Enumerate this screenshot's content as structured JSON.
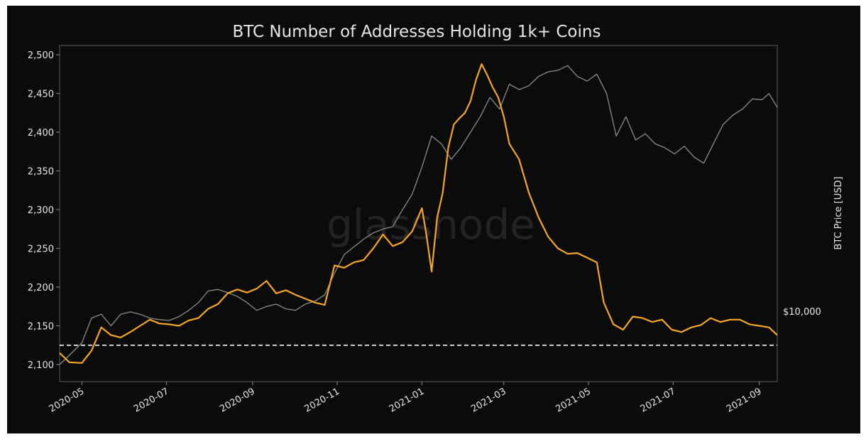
{
  "chart_data": {
    "type": "line",
    "title": "BTC Number of Addresses Holding 1k+ Coins",
    "watermark": "glassnode",
    "xlabel": "",
    "ylabel": "",
    "y2label": "BTC Price [USD]",
    "x_range": [
      "2020-04-15",
      "2021-09-14"
    ],
    "ylim": [
      2078,
      2512
    ],
    "yticks": [
      2100,
      2150,
      2200,
      2250,
      2300,
      2350,
      2400,
      2450,
      2500
    ],
    "ytick_labels": [
      "2,100",
      "2,150",
      "2,200",
      "2,250",
      "2,300",
      "2,350",
      "2,400",
      "2,450",
      "2,500"
    ],
    "xticks": [
      "2020-05-01",
      "2020-07-01",
      "2020-09-01",
      "2020-11-01",
      "2021-01-01",
      "2021-03-01",
      "2021-05-01",
      "2021-07-01",
      "2021-09-01"
    ],
    "xtick_labels": [
      "2020-05",
      "2020-07",
      "2020-09",
      "2020-11",
      "2021-01",
      "2021-03",
      "2021-05",
      "2021-07",
      "2021-09"
    ],
    "reference_line": {
      "label": "$10,000",
      "y": 2125
    },
    "grid": false,
    "colors": {
      "addresses": "#f5a623",
      "price": "#8c8c8c",
      "background": "#0b0b0b",
      "text": "#e6e6e6",
      "reference": "#ffffff"
    },
    "series": [
      {
        "key": "addresses",
        "x": [
          "2020-04-15",
          "2020-04-22",
          "2020-05-01",
          "2020-05-08",
          "2020-05-15",
          "2020-05-22",
          "2020-05-29",
          "2020-06-05",
          "2020-06-12",
          "2020-06-19",
          "2020-06-26",
          "2020-07-03",
          "2020-07-10",
          "2020-07-17",
          "2020-07-24",
          "2020-07-31",
          "2020-08-07",
          "2020-08-14",
          "2020-08-21",
          "2020-08-28",
          "2020-09-04",
          "2020-09-11",
          "2020-09-18",
          "2020-09-25",
          "2020-10-02",
          "2020-10-09",
          "2020-10-16",
          "2020-10-23",
          "2020-10-30",
          "2020-11-06",
          "2020-11-13",
          "2020-11-20",
          "2020-11-27",
          "2020-12-04",
          "2020-12-11",
          "2020-12-18",
          "2020-12-25",
          "2021-01-01",
          "2021-01-04",
          "2021-01-08",
          "2021-01-12",
          "2021-01-16",
          "2021-01-20",
          "2021-01-24",
          "2021-01-28",
          "2021-02-01",
          "2021-02-05",
          "2021-02-09",
          "2021-02-13",
          "2021-02-17",
          "2021-02-21",
          "2021-02-25",
          "2021-03-01",
          "2021-03-05",
          "2021-03-12",
          "2021-03-19",
          "2021-03-26",
          "2021-04-02",
          "2021-04-09",
          "2021-04-16",
          "2021-04-23",
          "2021-04-30",
          "2021-05-07",
          "2021-05-12",
          "2021-05-19",
          "2021-05-26",
          "2021-06-02",
          "2021-06-09",
          "2021-06-16",
          "2021-06-23",
          "2021-06-30",
          "2021-07-07",
          "2021-07-14",
          "2021-07-21",
          "2021-07-28",
          "2021-08-04",
          "2021-08-11",
          "2021-08-18",
          "2021-08-25",
          "2021-09-01",
          "2021-09-08",
          "2021-09-14"
        ],
        "values": [
          2115,
          2103,
          2102,
          2118,
          2148,
          2138,
          2135,
          2142,
          2150,
          2158,
          2153,
          2152,
          2150,
          2157,
          2160,
          2172,
          2178,
          2192,
          2197,
          2193,
          2198,
          2208,
          2192,
          2196,
          2190,
          2185,
          2180,
          2177,
          2228,
          2225,
          2232,
          2235,
          2250,
          2268,
          2253,
          2258,
          2272,
          2302,
          2270,
          2220,
          2290,
          2322,
          2380,
          2410,
          2418,
          2425,
          2440,
          2468,
          2488,
          2474,
          2458,
          2445,
          2420,
          2385,
          2365,
          2322,
          2290,
          2265,
          2250,
          2243,
          2244,
          2238,
          2232,
          2180,
          2152,
          2145,
          2162,
          2160,
          2155,
          2158,
          2145,
          2142,
          2148,
          2151,
          2160,
          2155,
          2158,
          2158,
          2152,
          2150,
          2148,
          2138
        ]
      },
      {
        "key": "price",
        "x": [
          "2020-04-15",
          "2020-04-22",
          "2020-05-01",
          "2020-05-08",
          "2020-05-15",
          "2020-05-22",
          "2020-05-29",
          "2020-06-05",
          "2020-06-12",
          "2020-06-19",
          "2020-06-26",
          "2020-07-03",
          "2020-07-10",
          "2020-07-17",
          "2020-07-24",
          "2020-07-31",
          "2020-08-07",
          "2020-08-14",
          "2020-08-21",
          "2020-08-28",
          "2020-09-04",
          "2020-09-11",
          "2020-09-18",
          "2020-09-25",
          "2020-10-02",
          "2020-10-09",
          "2020-10-16",
          "2020-10-23",
          "2020-10-30",
          "2020-11-06",
          "2020-11-13",
          "2020-11-20",
          "2020-11-27",
          "2020-12-04",
          "2020-12-11",
          "2020-12-18",
          "2020-12-25",
          "2021-01-01",
          "2021-01-08",
          "2021-01-15",
          "2021-01-22",
          "2021-01-29",
          "2021-02-05",
          "2021-02-12",
          "2021-02-19",
          "2021-02-26",
          "2021-03-05",
          "2021-03-12",
          "2021-03-19",
          "2021-03-26",
          "2021-04-02",
          "2021-04-09",
          "2021-04-16",
          "2021-04-23",
          "2021-04-30",
          "2021-05-07",
          "2021-05-14",
          "2021-05-21",
          "2021-05-28",
          "2021-06-04",
          "2021-06-11",
          "2021-06-18",
          "2021-06-25",
          "2021-07-02",
          "2021-07-09",
          "2021-07-16",
          "2021-07-23",
          "2021-07-30",
          "2021-08-06",
          "2021-08-13",
          "2021-08-20",
          "2021-08-27",
          "2021-09-03",
          "2021-09-08",
          "2021-09-14"
        ],
        "values": [
          2100,
          2112,
          2128,
          2160,
          2165,
          2150,
          2165,
          2168,
          2165,
          2160,
          2158,
          2157,
          2162,
          2170,
          2180,
          2195,
          2197,
          2193,
          2188,
          2180,
          2170,
          2175,
          2178,
          2172,
          2170,
          2178,
          2182,
          2190,
          2218,
          2242,
          2252,
          2262,
          2270,
          2275,
          2278,
          2300,
          2320,
          2355,
          2395,
          2385,
          2365,
          2380,
          2400,
          2420,
          2445,
          2430,
          2462,
          2455,
          2460,
          2472,
          2478,
          2480,
          2486,
          2472,
          2466,
          2475,
          2450,
          2395,
          2420,
          2390,
          2398,
          2385,
          2380,
          2372,
          2382,
          2368,
          2360,
          2385,
          2410,
          2422,
          2430,
          2443,
          2442,
          2450,
          2432
        ]
      }
    ]
  }
}
